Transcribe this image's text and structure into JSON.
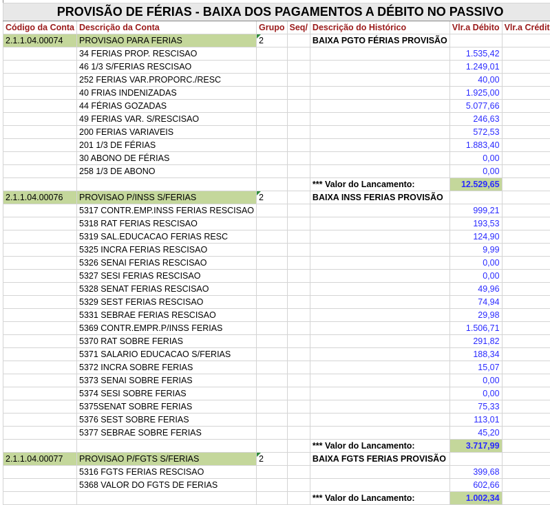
{
  "title": "PROVISÃO DE FÉRIAS  - BAIXA DOS PAGAMENTOS A DÉBITO NO PASSIVO",
  "headers": [
    "Código da Conta",
    "Descrição da Conta",
    "Grupo",
    "Seq/",
    "Descrição do Histórico",
    "Vlr.a Débito",
    "Vlr.a Crédito"
  ],
  "colors": {
    "header_text": "#9a1a1a",
    "highlight": "#c4d79b",
    "values": "#2a2aff"
  },
  "total_label": "*** Valor do Lancamento:",
  "groups": [
    {
      "code": "2.1.1.04.00074",
      "desc": "PROVISAO PARA FERIAS",
      "grupo": "2",
      "historico": "BAIXA PGTO FÉRIAS PROVISÃO",
      "total": "12.529,65",
      "items": [
        [
          "34 FERIAS PROP. RESCISAO",
          "1.535,42"
        ],
        [
          "46 1/3 S/FERIAS RESCISAO",
          "1.249,01"
        ],
        [
          "252 FERIAS VAR.PROPORC./RESC",
          "40,00"
        ],
        [
          "40 FRIAS INDENIZADAS",
          "1.925,00"
        ],
        [
          "44 FÉRIAS GOZADAS",
          "5.077,66"
        ],
        [
          "49 FERIAS VAR. S/RESCISAO",
          "246,63"
        ],
        [
          "200 FERIAS VARIAVEIS",
          "572,53"
        ],
        [
          "201 1/3 DE FÉRIAS",
          "1.883,40"
        ],
        [
          "30 ABONO DE FÉRIAS",
          "0,00"
        ],
        [
          "258 1/3 DE ABONO",
          "0,00"
        ]
      ]
    },
    {
      "code": "2.1.1.04.00076",
      "desc": "PROVISAO P/INSS S/FERIAS",
      "grupo": "2",
      "historico": "BAIXA INSS FERIAS PROVISÃO",
      "total": "3.717,99",
      "items": [
        [
          "5317 CONTR.EMP.INSS FERIAS RESCISAO",
          "999,21"
        ],
        [
          "5318 RAT FERIAS RESCISAO",
          "193,53"
        ],
        [
          "5319 SAL.EDUCACAO FERIAS RESC",
          "124,90"
        ],
        [
          "5325 INCRA FERIAS RESCISAO",
          "9,99"
        ],
        [
          "5326 SENAI FERIAS RESCISAO",
          "0,00"
        ],
        [
          "5327 SESI FERIAS RESCISAO",
          "0,00"
        ],
        [
          "5328 SENAT FERIAS RESCISAO",
          "49,96"
        ],
        [
          "5329 SEST FERIAS RESCISAO",
          "74,94"
        ],
        [
          "5331 SEBRAE FERIAS RESCISAO",
          "29,98"
        ],
        [
          "5369 CONTR.EMPR.P/INSS FERIAS",
          "1.506,71"
        ],
        [
          "5370 RAT SOBRE FERIAS",
          "291,82"
        ],
        [
          "5371 SALARIO EDUCACAO S/FERIAS",
          "188,34"
        ],
        [
          "5372 INCRA SOBRE FERIAS",
          "15,07"
        ],
        [
          "5373 SENAI SOBRE FERIAS",
          "0,00"
        ],
        [
          "5374 SESI SOBRE FERIAS",
          "0,00"
        ],
        [
          "5375SENAT SOBRE FERIAS",
          "75,33"
        ],
        [
          "5376 SEST SOBRE FERIAS",
          "113,01"
        ],
        [
          "5377 SEBRAE SOBRE FERIAS",
          "45,20"
        ]
      ]
    },
    {
      "code": "2.1.1.04.00077",
      "desc": "PROVISAO P/FGTS S/FERIAS",
      "grupo": "2",
      "historico": "BAIXA FGTS FERIAS PROVISÃO",
      "total": "1.002,34",
      "items": [
        [
          "5316 FGTS FERIAS RESCISAO",
          "399,68"
        ],
        [
          "5368 VALOR DO FGTS DE FERIAS",
          "602,66"
        ]
      ]
    }
  ]
}
